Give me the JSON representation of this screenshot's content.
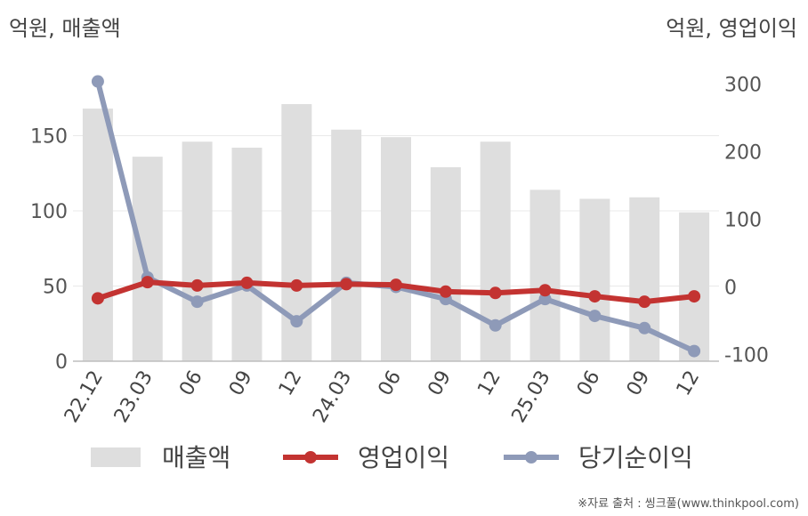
{
  "units": {
    "left": "억원, 매출액",
    "right": "억원, 영업이익"
  },
  "source": "※자료 출처 : 씽크풀(www.thinkpool.com)",
  "chart_data": {
    "type": "bar",
    "categories": [
      "22.12",
      "23.03",
      "06",
      "09",
      "12",
      "24.03",
      "06",
      "09",
      "12",
      "25.03",
      "06",
      "09",
      "12"
    ],
    "y_left": {
      "ticks": [
        0,
        50,
        100,
        150
      ],
      "ylim": [
        0,
        200
      ]
    },
    "y_right": {
      "ticks": [
        -100,
        0,
        100,
        200,
        300
      ],
      "ylim": [
        -110,
        335
      ]
    },
    "grid": true,
    "legend": "bottom",
    "series": [
      {
        "name": "매출액",
        "type": "bar",
        "axis": "left",
        "color": "#dedede",
        "values": [
          168,
          136,
          146,
          142,
          171,
          154,
          149,
          129,
          146,
          114,
          108,
          109,
          99
        ]
      },
      {
        "name": "영업이익",
        "type": "line",
        "axis": "right",
        "color": "#c33331",
        "values": [
          -17,
          7,
          2,
          6,
          2,
          4,
          3,
          -7,
          -9,
          -5,
          -14,
          -22,
          -14
        ]
      },
      {
        "name": "당기순이익",
        "type": "line",
        "axis": "right",
        "color": "#8e9ab8",
        "values": [
          304,
          14,
          -22,
          2,
          -51,
          6,
          0,
          -18,
          -57,
          -18,
          -43,
          -61,
          -95
        ]
      }
    ]
  }
}
